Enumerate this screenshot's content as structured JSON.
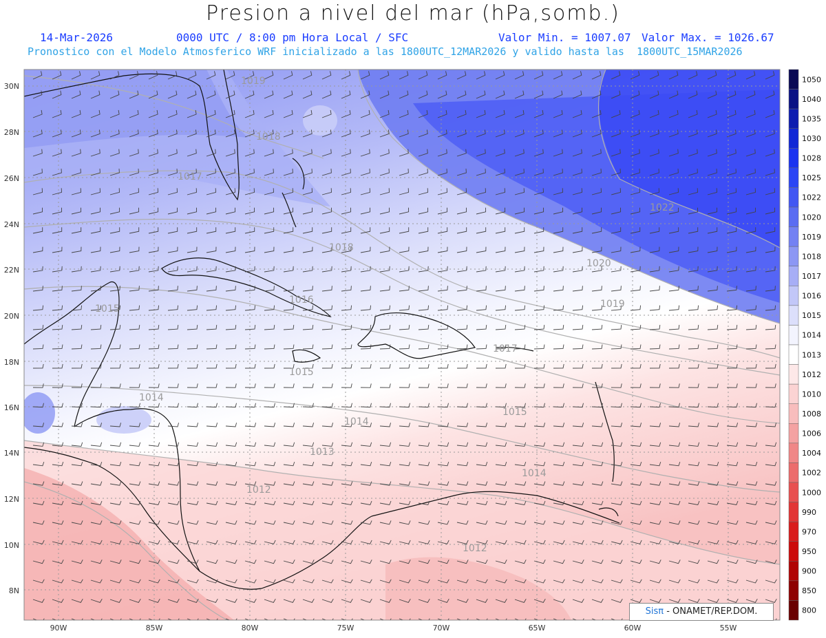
{
  "header": {
    "title": "Presion a nivel del mar (hPa,somb.)",
    "date": "14-Mar-2026",
    "time": "0000 UTC / 8:00 pm Hora Local / SFC",
    "min": "Valor Min. = 1007.07",
    "max": "Valor Max. = 1026.67",
    "model_line": "Pronostico con el Modelo Atmosferico WRF inicializado a las 1800UTC_12MAR2026 y valido hasta las  1800UTC_15MAR2026"
  },
  "axes": {
    "lat_labels": [
      "30N",
      "28N",
      "26N",
      "24N",
      "22N",
      "20N",
      "18N",
      "16N",
      "14N",
      "12N",
      "10N",
      "8N"
    ],
    "lon_labels": [
      "90W",
      "85W",
      "80W",
      "75W",
      "70W",
      "65W",
      "60W",
      "55W"
    ]
  },
  "colorbar": {
    "levels": [
      "1050",
      "1040",
      "1035",
      "1030",
      "1028",
      "1025",
      "1022",
      "1020",
      "1019",
      "1018",
      "1017",
      "1016",
      "1015",
      "1014",
      "1013",
      "1012",
      "1010",
      "1008",
      "1006",
      "1004",
      "1002",
      "1000",
      "990",
      "970",
      "950",
      "900",
      "850",
      "800"
    ],
    "colors": [
      "#0a0a55",
      "#0b1385",
      "#0d1db0",
      "#1027d6",
      "#1a33f0",
      "#2b45f5",
      "#4257f3",
      "#5a6cf2",
      "#7381f3",
      "#8c97f4",
      "#a7aef6",
      "#c2c7f8",
      "#dcdffb",
      "#f3f4fe",
      "#ffffff",
      "#fde8e8",
      "#fbd3d3",
      "#f8bdbd",
      "#f4a2a2",
      "#f08787",
      "#ec6c6c",
      "#e85050",
      "#e23535",
      "#d91c1c",
      "#cc0b0b",
      "#b00404",
      "#8e0202",
      "#6a0000"
    ]
  },
  "contour_labels": [
    {
      "text": "1019"
    },
    {
      "text": "1018"
    },
    {
      "text": "1017"
    },
    {
      "text": "1022"
    },
    {
      "text": "1020"
    },
    {
      "text": "1019"
    },
    {
      "text": "1018"
    },
    {
      "text": "1016"
    },
    {
      "text": "1015"
    },
    {
      "text": "1017"
    },
    {
      "text": "1015"
    },
    {
      "text": "1014"
    },
    {
      "text": "1015"
    },
    {
      "text": "1014"
    },
    {
      "text": "1013"
    },
    {
      "text": "1014"
    },
    {
      "text": "1012"
    },
    {
      "text": "1012"
    }
  ],
  "credit": {
    "brand": "Sisπ",
    "rest": " - ONAMET/REP.DOM."
  }
}
